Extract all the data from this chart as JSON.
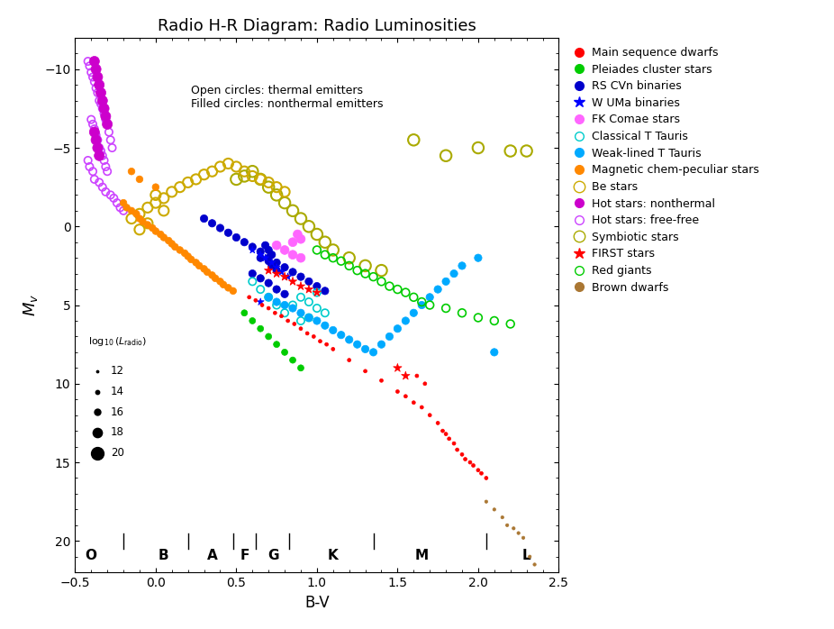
{
  "title": "Radio H-R Diagram: Radio Luminosities",
  "xlabel": "B-V",
  "ylabel": "M_v",
  "xlim": [
    -0.5,
    2.5
  ],
  "ylim": [
    22,
    -12
  ],
  "annotation_text": "Open circles: thermal emitters\nFilled circles: nonthermal emitters",
  "spectral_types": [
    {
      "label": "O",
      "bv": -0.4
    },
    {
      "label": "B",
      "bv": 0.05
    },
    {
      "label": "A",
      "bv": 0.35
    },
    {
      "label": "F",
      "bv": 0.55
    },
    {
      "label": "G",
      "bv": 0.73
    },
    {
      "label": "K",
      "bv": 1.1
    },
    {
      "label": "M",
      "bv": 1.65
    },
    {
      "label": "L",
      "bv": 2.3
    }
  ],
  "spectral_dividers": [
    -0.2,
    0.2,
    0.48,
    0.62,
    0.83,
    1.35,
    2.05
  ],
  "legend_luminosities": [
    12,
    14,
    16,
    18,
    20
  ],
  "legend_sizes": [
    3,
    10,
    25,
    55,
    100
  ],
  "categories": {
    "hot_freefree": {
      "label": "Hot stars: free-free",
      "color": "#cc44ff",
      "marker": "o",
      "filled": false,
      "lw": 1.2,
      "bv": [
        -0.42,
        -0.41,
        -0.4,
        -0.39,
        -0.38,
        -0.37,
        -0.36,
        -0.35,
        -0.34,
        -0.33,
        -0.32,
        -0.31,
        -0.3,
        -0.29,
        -0.28,
        -0.27,
        -0.4,
        -0.39,
        -0.38,
        -0.37,
        -0.36,
        -0.35,
        -0.34,
        -0.33,
        -0.32,
        -0.31,
        -0.3,
        -0.42,
        -0.41,
        -0.39,
        -0.38,
        -0.35,
        -0.33,
        -0.31,
        -0.28,
        -0.26,
        -0.24,
        -0.22,
        -0.2
      ],
      "mv": [
        -10.5,
        -10.2,
        -9.8,
        -9.5,
        -9.2,
        -8.8,
        -8.5,
        -8.0,
        -7.8,
        -7.5,
        -7.2,
        -6.8,
        -6.5,
        -6.0,
        -5.5,
        -5.0,
        -6.8,
        -6.5,
        -6.2,
        -5.8,
        -5.5,
        -5.0,
        -4.8,
        -4.5,
        -4.2,
        -3.8,
        -3.5,
        -4.2,
        -3.8,
        -3.5,
        -3.0,
        -2.8,
        -2.5,
        -2.2,
        -2.0,
        -1.8,
        -1.5,
        -1.2,
        -1.0
      ],
      "sizes": [
        36,
        36,
        36,
        36,
        36,
        36,
        36,
        36,
        36,
        36,
        36,
        36,
        36,
        36,
        36,
        36,
        36,
        36,
        36,
        36,
        36,
        36,
        36,
        36,
        36,
        36,
        36,
        36,
        36,
        36,
        36,
        36,
        36,
        36,
        36,
        36,
        36,
        36,
        36
      ]
    },
    "hot_nonthermal": {
      "label": "Hot stars: nonthermal",
      "color": "#cc00cc",
      "marker": "o",
      "filled": true,
      "lw": 0.5,
      "bv": [
        -0.38,
        -0.37,
        -0.36,
        -0.35,
        -0.34,
        -0.33,
        -0.32,
        -0.31,
        -0.3,
        -0.38,
        -0.37,
        -0.36,
        -0.35
      ],
      "mv": [
        -10.5,
        -10.0,
        -9.5,
        -9.0,
        -8.5,
        -8.0,
        -7.5,
        -7.0,
        -6.5,
        -6.0,
        -5.5,
        -5.0,
        -4.5
      ],
      "sizes": [
        64,
        64,
        64,
        64,
        64,
        64,
        64,
        64,
        64,
        64,
        64,
        64,
        64
      ]
    },
    "mag_cp": {
      "label": "Magnetic chem-peculiar stars",
      "color": "#ff8800",
      "marker": "o",
      "filled": true,
      "lw": 0.5,
      "bv": [
        -0.2,
        -0.18,
        -0.15,
        -0.12,
        -0.1,
        -0.08,
        -0.05,
        -0.02,
        0.0,
        0.03,
        0.05,
        0.08,
        0.1,
        0.12,
        0.15,
        0.18,
        0.2,
        0.22,
        0.25,
        0.27,
        0.3,
        0.32,
        0.35,
        0.37,
        0.4,
        0.42,
        0.45,
        0.48,
        0.0,
        -0.1,
        -0.15
      ],
      "mv": [
        -1.5,
        -1.2,
        -1.0,
        -0.8,
        -0.5,
        -0.3,
        -0.1,
        0.1,
        0.3,
        0.5,
        0.7,
        0.9,
        1.1,
        1.3,
        1.5,
        1.7,
        1.9,
        2.1,
        2.3,
        2.5,
        2.7,
        2.9,
        3.1,
        3.3,
        3.5,
        3.7,
        3.9,
        4.1,
        -2.5,
        -3.0,
        -3.5
      ],
      "sizes": [
        30,
        30,
        30,
        30,
        30,
        30,
        30,
        30,
        30,
        30,
        30,
        30,
        30,
        30,
        30,
        30,
        30,
        30,
        30,
        30,
        30,
        30,
        30,
        30,
        30,
        30,
        30,
        30,
        30,
        30,
        30
      ]
    },
    "symbiotic": {
      "label": "Symbiotic stars",
      "color": "#aaaa00",
      "marker": "o",
      "filled": false,
      "lw": 1.5,
      "bv": [
        0.5,
        0.55,
        0.6,
        0.65,
        0.7,
        0.75,
        0.8,
        0.85,
        0.9,
        0.95,
        1.0,
        1.05,
        1.1,
        1.2,
        1.3,
        1.4,
        1.6,
        1.8,
        2.0,
        2.2,
        2.3
      ],
      "mv": [
        -3.0,
        -3.2,
        -3.5,
        -3.0,
        -2.5,
        -2.0,
        -1.5,
        -1.0,
        -0.5,
        0.0,
        0.5,
        1.0,
        1.5,
        2.0,
        2.5,
        2.8,
        -5.5,
        -4.5,
        -5.0,
        -4.8,
        -4.8
      ],
      "sizes": [
        80,
        80,
        80,
        80,
        80,
        80,
        80,
        80,
        80,
        80,
        80,
        80,
        80,
        80,
        80,
        80,
        80,
        80,
        80,
        80,
        80
      ]
    },
    "rs_cvn": {
      "label": "RS CVn binaries",
      "color": "#0000cc",
      "marker": "o",
      "filled": true,
      "lw": 0.5,
      "bv": [
        0.3,
        0.35,
        0.4,
        0.45,
        0.5,
        0.55,
        0.6,
        0.65,
        0.7,
        0.75,
        0.8,
        0.85,
        0.9,
        0.95,
        1.0,
        1.05,
        0.6,
        0.65,
        0.7,
        0.75,
        0.8,
        0.65,
        0.7,
        0.72,
        0.75,
        0.7,
        0.72,
        0.68
      ],
      "mv": [
        -0.5,
        -0.2,
        0.1,
        0.4,
        0.7,
        1.0,
        1.3,
        1.6,
        2.0,
        2.3,
        2.6,
        2.9,
        3.2,
        3.5,
        3.8,
        4.1,
        3.0,
        3.3,
        3.6,
        4.0,
        4.3,
        2.0,
        2.2,
        2.5,
        2.8,
        1.5,
        1.8,
        1.2
      ],
      "sizes": [
        36,
        36,
        36,
        36,
        36,
        36,
        36,
        36,
        36,
        36,
        36,
        36,
        36,
        36,
        36,
        36,
        36,
        36,
        36,
        36,
        36,
        36,
        36,
        36,
        36,
        36,
        36,
        36
      ]
    },
    "w_uma": {
      "label": "W UMa binaries",
      "color": "#0000ff",
      "marker": "*",
      "filled": true,
      "lw": 0.5,
      "bv": [
        0.6,
        0.65,
        0.68,
        0.72,
        0.75,
        0.78,
        0.82,
        0.7,
        0.65
      ],
      "mv": [
        1.5,
        1.8,
        2.0,
        2.3,
        2.6,
        2.9,
        3.2,
        4.5,
        4.8
      ],
      "sizes": [
        36,
        36,
        36,
        36,
        36,
        36,
        36,
        36,
        36
      ]
    },
    "fk_comae": {
      "label": "FK Comae stars",
      "color": "#ff66ff",
      "marker": "o",
      "filled": true,
      "lw": 0.5,
      "bv": [
        0.75,
        0.8,
        0.85,
        0.9,
        0.85,
        0.9,
        0.88
      ],
      "mv": [
        1.2,
        1.5,
        1.8,
        2.0,
        1.0,
        0.8,
        0.5
      ],
      "sizes": [
        50,
        50,
        50,
        50,
        50,
        50,
        50
      ]
    },
    "classical_t_tauri": {
      "label": "Classical T Tauris",
      "color": "#00cccc",
      "marker": "o",
      "filled": false,
      "lw": 1.2,
      "bv": [
        0.6,
        0.65,
        0.7,
        0.75,
        0.8,
        0.85,
        0.9,
        0.95,
        1.0,
        1.05,
        1.0,
        0.95,
        0.9
      ],
      "mv": [
        3.5,
        4.0,
        4.5,
        5.0,
        5.5,
        5.0,
        4.5,
        4.8,
        5.2,
        5.5,
        4.2,
        5.8,
        6.0
      ],
      "sizes": [
        36,
        36,
        36,
        36,
        36,
        36,
        36,
        36,
        36,
        36,
        36,
        36,
        36
      ]
    },
    "weak_t_tauri": {
      "label": "Weak-lined T Tauris",
      "color": "#00aaff",
      "marker": "o",
      "filled": true,
      "lw": 0.5,
      "bv": [
        0.7,
        0.75,
        0.8,
        0.85,
        0.9,
        0.95,
        1.0,
        1.05,
        1.1,
        1.15,
        1.2,
        1.25,
        1.3,
        1.35,
        1.4,
        1.45,
        1.5,
        1.55,
        1.6,
        1.65,
        1.7,
        1.75,
        1.8,
        1.85,
        1.9,
        2.0,
        2.1
      ],
      "mv": [
        4.5,
        4.8,
        5.0,
        5.2,
        5.5,
        5.8,
        6.0,
        6.3,
        6.6,
        6.9,
        7.2,
        7.5,
        7.8,
        8.0,
        7.5,
        7.0,
        6.5,
        6.0,
        5.5,
        5.0,
        4.5,
        4.0,
        3.5,
        3.0,
        2.5,
        2.0,
        8.0
      ],
      "sizes": [
        36,
        36,
        36,
        36,
        36,
        36,
        36,
        36,
        36,
        36,
        36,
        36,
        36,
        36,
        36,
        36,
        36,
        36,
        36,
        36,
        36,
        36,
        36,
        36,
        36,
        36,
        36
      ]
    },
    "main_sequence": {
      "label": "Main sequence dwarfs",
      "color": "#ff0000",
      "marker": "o",
      "filled": true,
      "lw": 0.5,
      "bv": [
        0.58,
        0.62,
        0.66,
        0.7,
        0.74,
        0.78,
        0.82,
        0.86,
        0.9,
        0.94,
        0.98,
        1.02,
        1.06,
        1.1,
        1.2,
        1.3,
        1.4,
        1.5,
        1.55,
        1.6,
        1.65,
        1.7,
        1.75,
        1.78,
        1.8,
        1.82,
        1.85,
        1.87,
        1.9,
        1.92,
        1.95,
        1.97,
        2.0,
        2.02,
        2.05,
        1.62,
        1.67
      ],
      "mv": [
        4.5,
        4.7,
        5.0,
        5.2,
        5.5,
        5.7,
        6.0,
        6.2,
        6.5,
        6.8,
        7.0,
        7.3,
        7.5,
        7.8,
        8.5,
        9.2,
        9.8,
        10.5,
        10.8,
        11.2,
        11.5,
        12.0,
        12.5,
        13.0,
        13.2,
        13.5,
        13.8,
        14.2,
        14.5,
        14.8,
        15.0,
        15.2,
        15.5,
        15.7,
        16.0,
        9.5,
        10.0
      ],
      "sizes": [
        8,
        8,
        8,
        8,
        8,
        8,
        8,
        8,
        8,
        8,
        8,
        8,
        8,
        8,
        8,
        8,
        8,
        8,
        8,
        8,
        8,
        8,
        8,
        8,
        8,
        8,
        8,
        8,
        8,
        8,
        8,
        8,
        8,
        8,
        8,
        8,
        8
      ]
    },
    "pleiades": {
      "label": "Pleiades cluster stars",
      "color": "#00cc00",
      "marker": "o",
      "filled": true,
      "lw": 0.5,
      "bv": [
        0.55,
        0.6,
        0.65,
        0.7,
        0.75,
        0.8,
        0.85,
        0.9
      ],
      "mv": [
        5.5,
        6.0,
        6.5,
        7.0,
        7.5,
        8.0,
        8.5,
        9.0
      ],
      "sizes": [
        25,
        25,
        25,
        25,
        25,
        25,
        25,
        25
      ]
    },
    "be_stars": {
      "label": "Be stars",
      "color": "#ccaa00",
      "marker": "o",
      "filled": false,
      "lw": 1.5,
      "bv": [
        -0.15,
        -0.1,
        -0.05,
        0.0,
        0.05,
        0.1,
        0.15,
        0.2,
        0.25,
        0.3,
        0.35,
        0.4,
        0.45,
        0.5,
        0.55,
        0.6,
        0.65,
        0.7,
        0.75,
        0.8,
        0.0,
        0.05,
        -0.05,
        -0.1
      ],
      "mv": [
        -0.5,
        -0.8,
        -1.2,
        -1.5,
        -1.8,
        -2.2,
        -2.5,
        -2.8,
        -3.0,
        -3.3,
        -3.5,
        -3.8,
        -4.0,
        -3.8,
        -3.5,
        -3.2,
        -3.0,
        -2.8,
        -2.5,
        -2.2,
        -2.0,
        -1.0,
        -0.2,
        0.2
      ],
      "sizes": [
        64,
        64,
        64,
        64,
        64,
        64,
        64,
        64,
        64,
        64,
        64,
        64,
        64,
        64,
        64,
        64,
        64,
        64,
        64,
        64,
        64,
        64,
        64,
        64
      ]
    },
    "first_stars": {
      "label": "FIRST stars",
      "color": "#ff0000",
      "marker": "*",
      "filled": true,
      "lw": 0.5,
      "bv": [
        0.7,
        0.75,
        0.8,
        0.85,
        0.9,
        0.95,
        1.0,
        1.5,
        1.55
      ],
      "mv": [
        2.8,
        3.0,
        3.2,
        3.5,
        3.8,
        4.0,
        4.2,
        9.0,
        9.5
      ],
      "sizes": [
        50,
        50,
        50,
        50,
        50,
        50,
        50,
        50,
        50
      ]
    },
    "red_giants": {
      "label": "Red giants",
      "color": "#00cc00",
      "marker": "o",
      "filled": false,
      "lw": 1.2,
      "bv": [
        1.0,
        1.05,
        1.1,
        1.15,
        1.2,
        1.25,
        1.3,
        1.35,
        1.4,
        1.45,
        1.5,
        1.55,
        1.6,
        1.65,
        1.7,
        1.8,
        1.9,
        2.0,
        2.1,
        2.2
      ],
      "mv": [
        1.5,
        1.8,
        2.0,
        2.2,
        2.5,
        2.8,
        3.0,
        3.2,
        3.5,
        3.8,
        4.0,
        4.2,
        4.5,
        4.8,
        5.0,
        5.2,
        5.5,
        5.8,
        6.0,
        6.2
      ],
      "sizes": [
        40,
        40,
        40,
        40,
        40,
        40,
        40,
        40,
        40,
        40,
        40,
        40,
        40,
        40,
        40,
        40,
        40,
        40,
        40,
        40
      ]
    },
    "brown_dwarfs": {
      "label": "Brown dwarfs",
      "color": "#aa7733",
      "marker": "o",
      "filled": true,
      "lw": 0.5,
      "bv": [
        2.05,
        2.1,
        2.15,
        2.18,
        2.22,
        2.25,
        2.28,
        2.32,
        2.35
      ],
      "mv": [
        17.5,
        18.0,
        18.5,
        19.0,
        19.2,
        19.5,
        19.8,
        21.0,
        21.5
      ],
      "sizes": [
        6,
        6,
        6,
        6,
        6,
        6,
        6,
        6,
        6
      ]
    }
  }
}
